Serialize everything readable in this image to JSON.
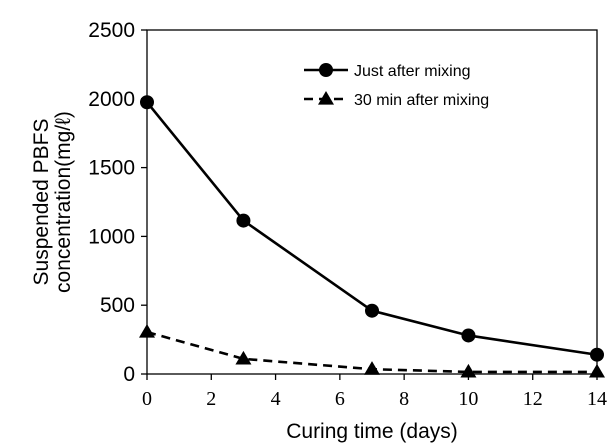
{
  "chart_data": {
    "type": "line",
    "title": "",
    "xlabel": "Curing time (days)",
    "ylabel": [
      "Suspended PBFS",
      "concentration(mg/ℓ)"
    ],
    "xlim": [
      0,
      14
    ],
    "ylim": [
      0,
      2500
    ],
    "xticks": [
      0,
      2,
      4,
      6,
      8,
      10,
      12,
      14
    ],
    "yticks": [
      0,
      500,
      1000,
      1500,
      2000,
      2500
    ],
    "grid": false,
    "legend_position": "top-right",
    "series": [
      {
        "name": "Just after mixing",
        "marker": "circle",
        "line_style": "solid",
        "color": "#000000",
        "x": [
          0,
          3,
          7,
          10,
          14
        ],
        "y": [
          1975,
          1115,
          460,
          280,
          140
        ]
      },
      {
        "name": "30 min after mixing",
        "marker": "triangle",
        "line_style": "dashed",
        "color": "#000000",
        "x": [
          0,
          3,
          7,
          10,
          14
        ],
        "y": [
          305,
          110,
          35,
          15,
          15
        ]
      }
    ]
  }
}
